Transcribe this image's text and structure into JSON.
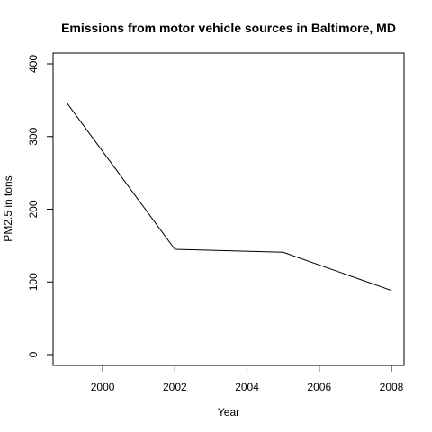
{
  "chart_data": {
    "type": "line",
    "title": "Emissions from motor vehicle sources in Baltimore, MD",
    "xlabel": "Year",
    "ylabel": "PM2.5 in tons",
    "x": [
      1999,
      2002,
      2005,
      2008
    ],
    "series": [
      {
        "values": [
          346.8,
          144.9,
          140.8,
          88.3
        ],
        "color": "#000000"
      }
    ],
    "xlim": [
      1999,
      2008
    ],
    "ylim": [
      0,
      400
    ],
    "xticks": [
      2000,
      2002,
      2004,
      2006,
      2008
    ],
    "yticks": [
      0,
      100,
      200,
      300,
      400
    ],
    "grid": false,
    "legend": "none"
  }
}
